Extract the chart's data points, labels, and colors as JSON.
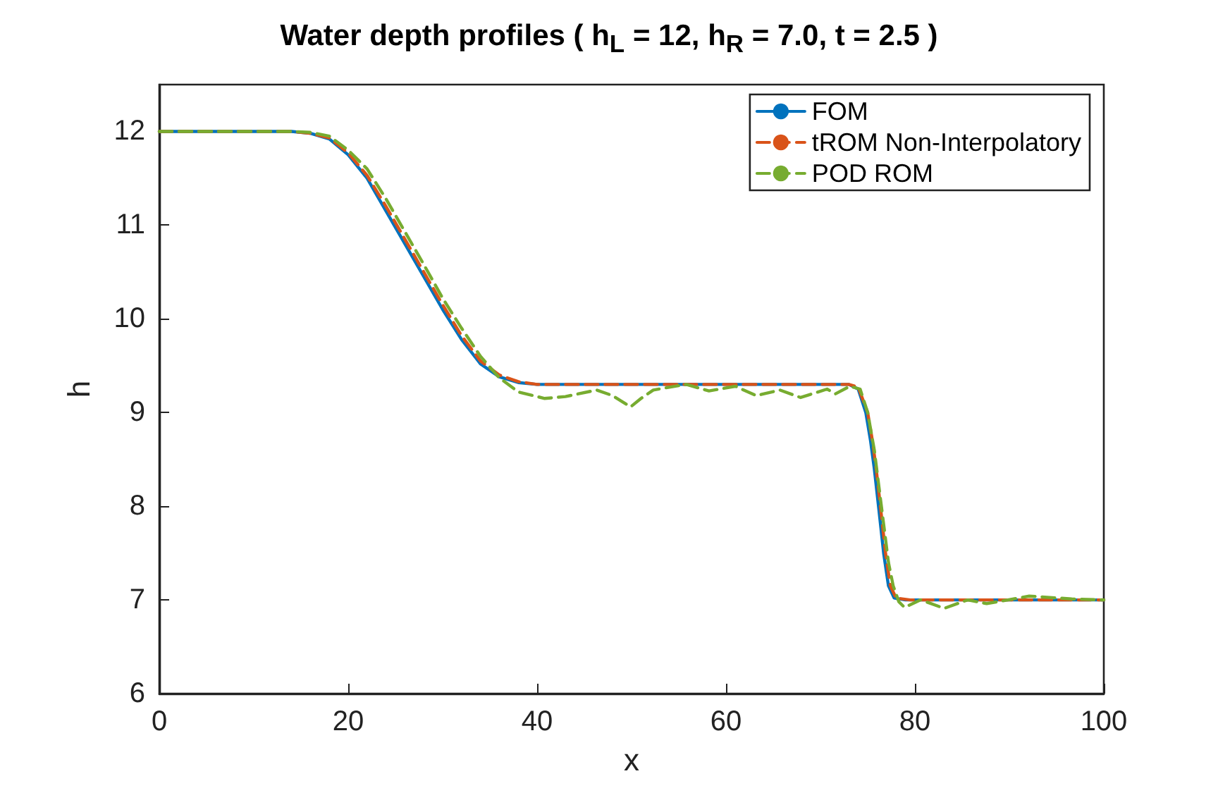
{
  "chart_data": {
    "type": "line",
    "title": "Water depth profiles ( h$_{L}$ = 12, h$_{R}$ = 7.0, t = 2.5 )",
    "xlabel": "x",
    "ylabel": "h",
    "xlim": [
      0,
      100
    ],
    "xticks": [
      0,
      20,
      40,
      60,
      80,
      100
    ],
    "ylim": [
      6,
      12.5
    ],
    "yticks": [
      6,
      7,
      8,
      9,
      10,
      11,
      12
    ],
    "grid": false,
    "legend": "top right",
    "marker": "none",
    "series": [
      {
        "name": "FOM",
        "color": "#0072bd",
        "line_style": "solid",
        "x": [
          0,
          14,
          16,
          18,
          20,
          22,
          24,
          26,
          28,
          30,
          32,
          34,
          36,
          38,
          40,
          73,
          74,
          74.8,
          75.3,
          75.7,
          76.2,
          76.7,
          77.2,
          77.8,
          79,
          100
        ],
        "values": [
          12,
          12,
          11.98,
          11.92,
          11.75,
          11.5,
          11.15,
          10.8,
          10.45,
          10.1,
          9.78,
          9.52,
          9.38,
          9.32,
          9.3,
          9.3,
          9.25,
          9.0,
          8.7,
          8.4,
          7.95,
          7.49,
          7.15,
          7.02,
          7.0,
          7.0
        ]
      },
      {
        "name": "tROM Non-Interpolatory",
        "color": "#d95319",
        "line_style": "dashed",
        "x": [
          0,
          14,
          16,
          18,
          20,
          22,
          24,
          26,
          28,
          30,
          32,
          34,
          36,
          38,
          40,
          73,
          74,
          75,
          75.5,
          75.9,
          76.4,
          76.9,
          77.4,
          78,
          79.5,
          100
        ],
        "values": [
          12,
          12,
          11.98,
          11.93,
          11.77,
          11.53,
          11.2,
          10.85,
          10.5,
          10.15,
          9.82,
          9.55,
          9.4,
          9.33,
          9.3,
          9.3,
          9.27,
          9.0,
          8.7,
          8.4,
          7.95,
          7.49,
          7.15,
          7.02,
          7.0,
          7.0
        ]
      },
      {
        "name": "POD ROM",
        "color": "#77ac30",
        "line_style": "dashed",
        "x": [
          0,
          14,
          16,
          18,
          20,
          22,
          24,
          26,
          28,
          30,
          32,
          34,
          36,
          38,
          40.8,
          43,
          46.3,
          48,
          49.9,
          51,
          52.3,
          54,
          55.8,
          58.2,
          61,
          63.2,
          65.7,
          67.9,
          70.7,
          71.6,
          73.1,
          74.2,
          75,
          75.7,
          76.2,
          76.7,
          77.2,
          77.7,
          78.3,
          78.9,
          80.6,
          83.1,
          85.6,
          87.6,
          92.1,
          96.6,
          100
        ],
        "values": [
          12,
          12,
          11.99,
          11.95,
          11.8,
          11.6,
          11.28,
          10.93,
          10.58,
          10.22,
          9.9,
          9.6,
          9.37,
          9.22,
          9.15,
          9.17,
          9.24,
          9.18,
          9.06,
          9.15,
          9.24,
          9.27,
          9.3,
          9.23,
          9.28,
          9.18,
          9.24,
          9.16,
          9.25,
          9.2,
          9.28,
          9.25,
          9.0,
          8.6,
          8.2,
          7.8,
          7.4,
          7.15,
          6.98,
          6.92,
          7.0,
          6.91,
          7.0,
          6.96,
          7.04,
          7.01,
          7.0
        ]
      }
    ]
  }
}
